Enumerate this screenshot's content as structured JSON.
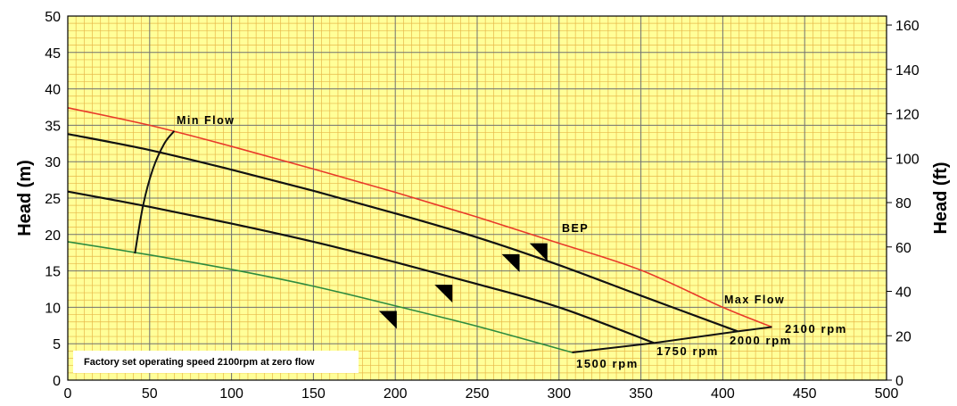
{
  "chart_data": {
    "type": "line",
    "title": "",
    "xlim": [
      0,
      500
    ],
    "ylim": [
      0,
      50
    ],
    "y2lim": [
      0,
      164.04
    ],
    "x_ticks": [
      0,
      50,
      100,
      150,
      200,
      250,
      300,
      350,
      400,
      450,
      500
    ],
    "y_ticks": [
      0,
      5,
      10,
      15,
      20,
      25,
      30,
      35,
      40,
      45,
      50
    ],
    "y2_ticks": [
      0,
      20,
      40,
      60,
      80,
      100,
      120,
      140,
      160
    ],
    "ylabel": "Head (m)",
    "y2label": "Head (ft)",
    "grid": true,
    "background_color": "#ffff99",
    "minor_grid_color": "#e8b84a",
    "major_grid_color": "#707070",
    "series": [
      {
        "name": "2100 rpm",
        "color": "#e83a2a",
        "x": [
          0,
          50,
          100,
          150,
          200,
          250,
          300,
          350,
          400,
          430
        ],
        "y": [
          37.4,
          35.0,
          32.1,
          29.0,
          25.8,
          22.4,
          18.8,
          15.1,
          10.0,
          7.3
        ]
      },
      {
        "name": "2000 rpm",
        "color": "#111111",
        "x": [
          0,
          50,
          100,
          150,
          200,
          250,
          300,
          350,
          409
        ],
        "y": [
          33.8,
          31.6,
          28.9,
          26.0,
          22.9,
          19.6,
          15.8,
          11.6,
          6.7
        ]
      },
      {
        "name": "1750 rpm",
        "color": "#111111",
        "x": [
          0,
          50,
          100,
          150,
          200,
          250,
          300,
          358
        ],
        "y": [
          25.9,
          23.8,
          21.5,
          19.0,
          16.2,
          13.2,
          10.0,
          5.1
        ]
      },
      {
        "name": "1500 rpm",
        "color": "#2e8b3e",
        "x": [
          0,
          50,
          100,
          150,
          200,
          250,
          308
        ],
        "y": [
          19.0,
          17.2,
          15.2,
          12.9,
          10.2,
          7.4,
          3.8
        ]
      }
    ],
    "min_flow_curve": {
      "x": [
        41,
        46,
        52,
        59,
        65
      ],
      "y": [
        17.4,
        24.0,
        29.0,
        32.5,
        34.2
      ]
    },
    "max_flow_line": {
      "x": [
        308,
        358,
        409,
        430
      ],
      "y": [
        3.8,
        5.1,
        6.7,
        7.3
      ]
    },
    "bep_markers": [
      {
        "x": 282,
        "y": 18.8
      },
      {
        "x": 265,
        "y": 17.3
      },
      {
        "x": 224,
        "y": 13.1
      },
      {
        "x": 190,
        "y": 9.5
      }
    ],
    "annotations": {
      "min_flow": "Min Flow",
      "bep": "BEP",
      "max_flow": "Max Flow",
      "rpm_2100": "2100 rpm",
      "rpm_2000": "2000 rpm",
      "rpm_1750": "1750 rpm",
      "rpm_1500": "1500 rpm",
      "note": "Factory set operating speed 2100rpm at zero flow"
    }
  }
}
